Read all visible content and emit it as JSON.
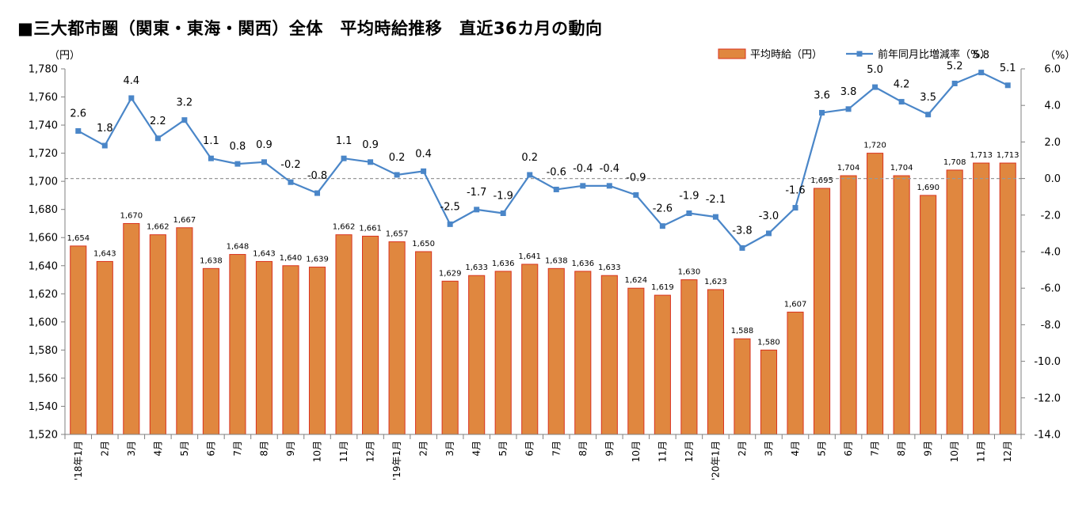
{
  "title": "■三大都市圏（関東・東海・関西）全体　平均時給推移　直近36カ月の動向",
  "chart_data": {
    "type": "bar+line",
    "categories": [
      "'18年1月",
      "2月",
      "3月",
      "4月",
      "5月",
      "6月",
      "7月",
      "8月",
      "9月",
      "10月",
      "11月",
      "12月",
      "'19年1月",
      "2月",
      "3月",
      "4月",
      "5月",
      "6月",
      "7月",
      "8月",
      "9月",
      "10月",
      "11月",
      "12月",
      "'20年1月",
      "2月",
      "3月",
      "4月",
      "5月",
      "6月",
      "7月",
      "8月",
      "9月",
      "10月",
      "11月",
      "12月"
    ],
    "series": [
      {
        "name": "平均時給（円）",
        "type": "bar",
        "axis": "left",
        "color": "#e0873f",
        "values": [
          1654,
          1643,
          1670,
          1662,
          1667,
          1638,
          1648,
          1643,
          1640,
          1639,
          1662,
          1661,
          1657,
          1650,
          1629,
          1633,
          1636,
          1641,
          1638,
          1636,
          1633,
          1624,
          1619,
          1630,
          1623,
          1588,
          1580,
          1607,
          1695,
          1704,
          1720,
          1704,
          1690,
          1708,
          1713,
          1713
        ],
        "labels": [
          "1,654",
          "1,643",
          "1,670",
          "1,662",
          "1,667",
          "1,638",
          "1,648",
          "1,643",
          "1,640",
          "1,639",
          "1,662",
          "1,661",
          "1,657",
          "1,650",
          "1,629",
          "1,633",
          "1,636",
          "1,641",
          "1,638",
          "1,636",
          "1,633",
          "1,624",
          "1,619",
          "1,630",
          "1,623",
          "1,588",
          "1,580",
          "1,607",
          "1,695",
          "1,704",
          "1,720",
          "1,704",
          "1,690",
          "1,708",
          "1,713",
          "1,713"
        ]
      },
      {
        "name": "前年同月比増減率（%）",
        "type": "line",
        "axis": "right",
        "color": "#4a86c8",
        "values": [
          2.6,
          1.8,
          4.4,
          2.2,
          3.2,
          1.1,
          0.8,
          0.9,
          -0.2,
          -0.8,
          1.1,
          0.9,
          0.2,
          0.4,
          -2.5,
          -1.7,
          -1.9,
          0.2,
          -0.6,
          -0.4,
          -0.4,
          -0.9,
          -2.6,
          -1.9,
          -2.1,
          -3.8,
          -3.0,
          -1.6,
          3.6,
          3.8,
          5.0,
          4.2,
          3.5,
          5.2,
          5.8,
          5.1
        ],
        "labels": [
          "2.6",
          "1.8",
          "4.4",
          "2.2",
          "3.2",
          "1.1",
          "0.8",
          "0.9",
          "-0.2",
          "-0.8",
          "1.1",
          "0.9",
          "0.2",
          "0.4",
          "-2.5",
          "-1.7",
          "-1.9",
          "0.2",
          "-0.6",
          "-0.4",
          "-0.4",
          "-0.9",
          "-2.6",
          "-1.9",
          "-2.1",
          "-3.8",
          "-3.0",
          "-1.6",
          "3.6",
          "3.8",
          "5.0",
          "4.2",
          "3.5",
          "5.2",
          "5.8",
          "5.1"
        ]
      }
    ],
    "y_left": {
      "unit_label": "（円）",
      "ylim": [
        1520,
        1780
      ],
      "ticks": [
        1520,
        1540,
        1560,
        1580,
        1600,
        1620,
        1640,
        1660,
        1680,
        1700,
        1720,
        1740,
        1760,
        1780
      ],
      "tick_labels": [
        "1,520",
        "1,540",
        "1,560",
        "1,580",
        "1,600",
        "1,620",
        "1,640",
        "1,660",
        "1,680",
        "1,700",
        "1,720",
        "1,740",
        "1,760",
        "1,780"
      ]
    },
    "y_right": {
      "unit_label": "（%）",
      "ylim": [
        -14.0,
        6.0
      ],
      "ticks": [
        -14,
        -12,
        -10,
        -8,
        -6,
        -4,
        -2,
        0,
        2,
        4,
        6
      ],
      "tick_labels": [
        "-14.0",
        "-12.0",
        "-10.0",
        "-8.0",
        "-6.0",
        "-4.0",
        "-2.0",
        "0.0",
        "2.0",
        "4.0",
        "6.0"
      ]
    },
    "zero_line": "dashed",
    "legend_position": "top-right"
  }
}
